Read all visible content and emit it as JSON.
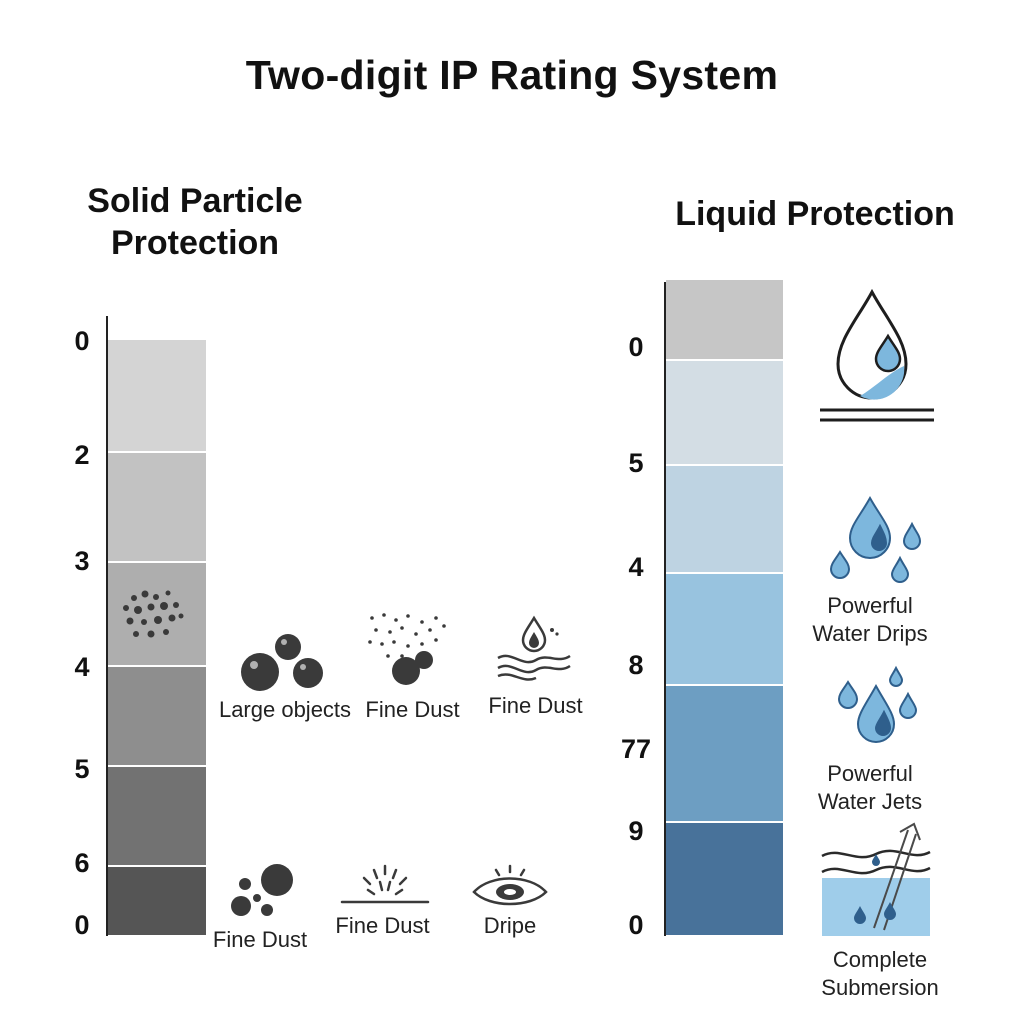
{
  "title": "Two-digit IP Rating System",
  "solid": {
    "heading_line1": "Solid Particle",
    "heading_line2": "Protection",
    "numbers": [
      "0",
      "2",
      "3",
      "4",
      "5",
      "6",
      "0"
    ],
    "segment_colors": [
      "#d4d4d4",
      "#c2c2c2",
      "#aeaeae",
      "#8e8e8e",
      "#727272",
      "#555555"
    ],
    "icons": [
      {
        "icon": "large-objects-icon",
        "label": "Large objects"
      },
      {
        "icon": "fine-dust-spray-icon",
        "label": "Fine Dust"
      },
      {
        "icon": "water-wave-drop-icon",
        "label": "Fine Dust"
      },
      {
        "icon": "particles-icon",
        "label": "Fine Dust"
      },
      {
        "icon": "spray-surface-icon",
        "label": "Fine Dust"
      },
      {
        "icon": "eye-icon",
        "label": "Dripe"
      }
    ]
  },
  "liquid": {
    "heading": "Liquid Protection",
    "numbers": [
      "0",
      "5",
      "4",
      "8",
      "77",
      "9",
      "0"
    ],
    "segment_colors": [
      "#c6c6c6",
      "#d3dde4",
      "#bed3e2",
      "#98c3df",
      "#6d9ec2",
      "#48729a"
    ],
    "icons": [
      {
        "icon": "drop-on-surface-icon",
        "label": ""
      },
      {
        "icon": "water-drips-icon",
        "label_line1": "Powerful",
        "label_line2": "Water Drips"
      },
      {
        "icon": "water-jets-icon",
        "label_line1": "Powerful",
        "label_line2": "Water Jets"
      },
      {
        "icon": "submersion-icon",
        "label_line1": "Complete",
        "label_line2": "Submersion"
      }
    ]
  },
  "colors": {
    "water_blue": "#7db7dd",
    "water_blue_dark": "#2f5f8c",
    "icon_gray": "#3a3a3a"
  }
}
